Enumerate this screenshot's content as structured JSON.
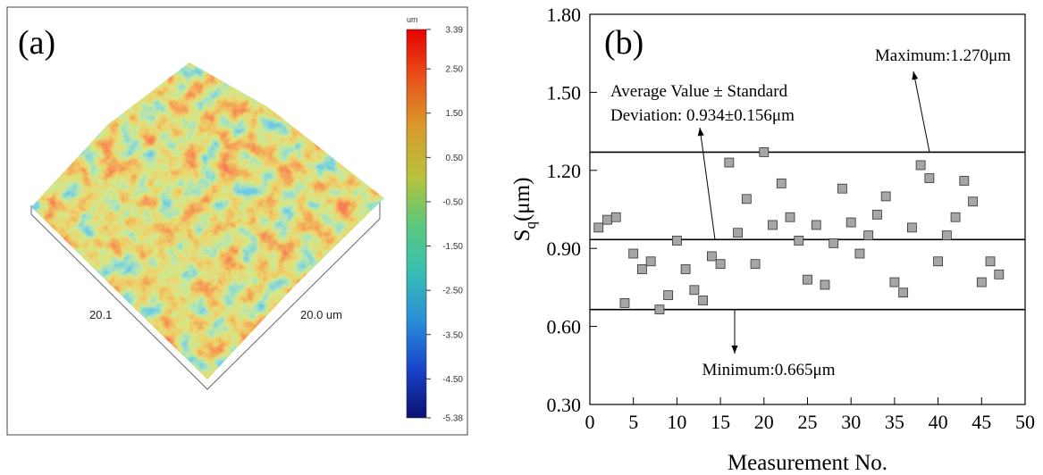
{
  "chart_data": [
    {
      "type": "surface",
      "panel_label": "(a)",
      "colorbar_title": "um",
      "colorbar_lim": [
        -5.38,
        3.39
      ],
      "colorbar_ticks": [
        3.39,
        {
          "value": 2.5,
          "label": "2.50"
        },
        {
          "value": 1.5,
          "label": "1.50"
        },
        {
          "value": 0.5,
          "label": "0.50"
        },
        {
          "value": -0.5,
          "label": "-0.50"
        },
        {
          "value": -1.5,
          "label": "-1.50"
        },
        {
          "value": -2.5,
          "label": "-2.50"
        },
        {
          "value": -3.5,
          "label": "-3.50"
        },
        {
          "value": -4.5,
          "label": "-4.50"
        },
        -5.38
      ],
      "axis_labels": [
        "20.1",
        "20.0 um"
      ]
    },
    {
      "type": "scatter",
      "panel_label": "(b)",
      "xlabel": "Measurement No.",
      "ylabel": [
        "S",
        "q",
        "(μm)"
      ],
      "x": [
        1,
        2,
        3,
        4,
        5,
        6,
        7,
        8,
        9,
        10,
        11,
        12,
        13,
        14,
        15,
        16,
        17,
        18,
        19,
        20,
        21,
        22,
        23,
        24,
        25,
        26,
        27,
        28,
        29,
        30,
        31,
        32,
        33,
        34,
        35,
        36,
        37,
        38,
        39,
        40,
        41,
        42,
        43,
        44,
        45,
        46,
        47
      ],
      "values": [
        0.98,
        1.01,
        1.02,
        0.69,
        0.88,
        0.82,
        0.85,
        0.665,
        0.72,
        0.93,
        0.82,
        0.74,
        0.7,
        0.87,
        0.84,
        1.23,
        0.96,
        1.09,
        0.84,
        1.27,
        0.99,
        1.15,
        1.02,
        0.93,
        0.78,
        0.99,
        0.76,
        0.92,
        1.13,
        1.0,
        0.88,
        0.95,
        1.03,
        1.1,
        0.77,
        0.73,
        0.98,
        1.22,
        1.17,
        0.85,
        0.95,
        1.02,
        1.16,
        1.08,
        0.77,
        0.85,
        0.8
      ],
      "color": "#a6a6a6",
      "xlim": [
        0,
        50
      ],
      "xticks": [
        0,
        5,
        10,
        15,
        20,
        25,
        30,
        35,
        40,
        45,
        50
      ],
      "ylim": [
        0.3,
        1.8
      ],
      "yticks": [
        {
          "value": 0.3,
          "label": "0.30"
        },
        {
          "value": 0.6,
          "label": "0.60"
        },
        {
          "value": 0.9,
          "label": "0.90"
        },
        {
          "value": 1.2,
          "label": "1.20"
        },
        {
          "value": 1.5,
          "label": "1.50"
        },
        {
          "value": 1.8,
          "label": "1.80"
        }
      ],
      "reference_lines": [
        {
          "value": 1.27,
          "label": [
            "Maximum:1.270μm"
          ]
        },
        {
          "value": 0.934,
          "label": [
            "Average Value ± Standard",
            "Deviation: 0.934±0.156μm"
          ]
        },
        {
          "value": 0.665,
          "label": [
            "Minimum:0.665μm"
          ]
        }
      ]
    }
  ]
}
